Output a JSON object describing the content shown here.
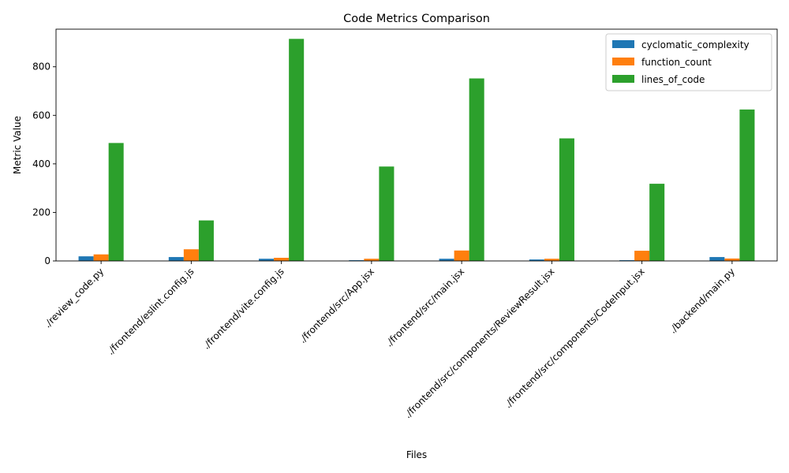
{
  "chart_data": {
    "type": "bar",
    "title": "Code Metrics Comparison",
    "xlabel": "Files",
    "ylabel": "Metric Value",
    "ylim": [
      0,
      955
    ],
    "yticks": [
      0,
      200,
      400,
      600,
      800
    ],
    "grid": false,
    "legend_position": "top-right",
    "categories": [
      "./review_code.py",
      "./frontend/eslint.config.js",
      "./frontend/vite.config.js",
      "./frontend/src/App.jsx",
      "./frontend/src/main.jsx",
      "./frontend/src/components/ReviewResult.jsx",
      "./frontend/src/components/CodeInput.jsx",
      "./backend/main.py"
    ],
    "series": [
      {
        "name": "cyclomatic_complexity",
        "color": "#1f77b4",
        "values": [
          19,
          16,
          9,
          3,
          9,
          6,
          3,
          16
        ]
      },
      {
        "name": "function_count",
        "color": "#ff7f0e",
        "values": [
          27,
          48,
          13,
          9,
          43,
          9,
          42,
          10
        ]
      },
      {
        "name": "lines_of_code",
        "color": "#2ca02c",
        "values": [
          486,
          167,
          915,
          389,
          752,
          505,
          318,
          624
        ]
      }
    ]
  }
}
